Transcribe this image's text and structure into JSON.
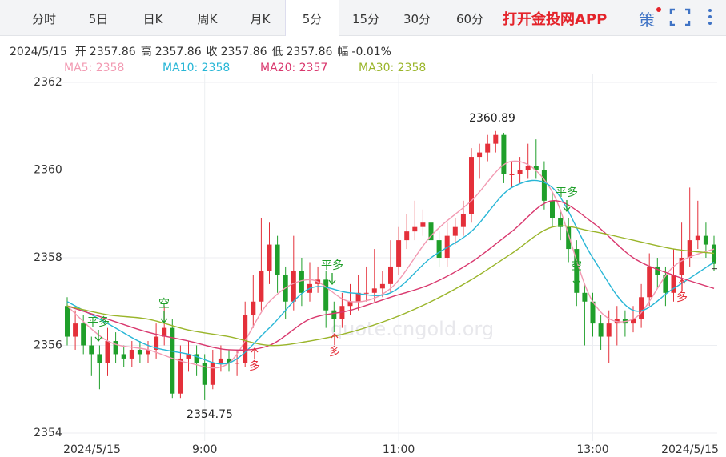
{
  "tabs": [
    "分时",
    "5日",
    "日K",
    "周K",
    "月K",
    "5分",
    "15分",
    "30分",
    "60分"
  ],
  "active_tab": 5,
  "app_link": "打开金投网APP",
  "icon_text": "策",
  "info": [
    {
      "label": "2024/5/15"
    },
    {
      "label": "开",
      "value": "2357.86"
    },
    {
      "label": "高",
      "value": "2357.86"
    },
    {
      "label": "收",
      "value": "2357.86"
    },
    {
      "label": "低",
      "value": "2357.86"
    },
    {
      "label": "幅",
      "value": "-0.01%"
    }
  ],
  "chart_data": {
    "type": "candlestick",
    "up_color": "#e4303a",
    "down_color": "#1f9f2a",
    "watermark": "quote.cngold.org",
    "categories": [
      null,
      null,
      null,
      "2024/5/15",
      null,
      null,
      null,
      null,
      null,
      null,
      null,
      null,
      null,
      null,
      null,
      null,
      null,
      "9:00",
      null,
      null,
      null,
      null,
      null,
      null,
      null,
      null,
      null,
      null,
      null,
      null,
      null,
      null,
      null,
      null,
      null,
      null,
      null,
      null,
      null,
      null,
      null,
      "11:00",
      null,
      null,
      null,
      null,
      null,
      null,
      null,
      null,
      null,
      null,
      null,
      null,
      null,
      null,
      null,
      null,
      null,
      null,
      null,
      null,
      null,
      null,
      null,
      "13:00",
      null,
      null,
      null,
      null,
      null,
      null,
      null,
      null,
      null,
      null,
      null,
      "2024/5/15",
      null,
      null,
      null
    ],
    "ohlc": [
      [
        2356.9,
        2357.1,
        2356.0,
        2356.2
      ],
      [
        2356.2,
        2356.8,
        2355.9,
        2356.5
      ],
      [
        2356.5,
        2356.7,
        2355.8,
        2356.0
      ],
      [
        2356.0,
        2356.2,
        2355.3,
        2355.8
      ],
      [
        2355.8,
        2356.0,
        2355.0,
        2355.6
      ],
      [
        2355.6,
        2356.4,
        2355.3,
        2356.1
      ],
      [
        2356.1,
        2356.3,
        2355.6,
        2355.8
      ],
      [
        2355.8,
        2356.0,
        2355.5,
        2355.7
      ],
      [
        2355.7,
        2356.1,
        2355.5,
        2355.9
      ],
      [
        2355.9,
        2356.1,
        2355.6,
        2355.8
      ],
      [
        2355.8,
        2356.1,
        2355.6,
        2355.9
      ],
      [
        2355.9,
        2356.5,
        2355.7,
        2356.2
      ],
      [
        2356.2,
        2356.9,
        2356.0,
        2356.4
      ],
      [
        2356.4,
        2356.6,
        2354.8,
        2354.9
      ],
      [
        2354.9,
        2356.0,
        2354.8,
        2355.7
      ],
      [
        2355.7,
        2356.1,
        2355.4,
        2355.8
      ],
      [
        2355.8,
        2356.0,
        2355.3,
        2355.6
      ],
      [
        2355.6,
        2355.8,
        2354.75,
        2355.1
      ],
      [
        2355.1,
        2355.9,
        2355.0,
        2355.6
      ],
      [
        2355.6,
        2356.0,
        2355.4,
        2355.7
      ],
      [
        2355.7,
        2355.9,
        2355.4,
        2355.6
      ],
      [
        2355.6,
        2355.9,
        2355.3,
        2355.6
      ],
      [
        2355.6,
        2357.0,
        2355.5,
        2356.7
      ],
      [
        2356.7,
        2357.6,
        2356.4,
        2357.0
      ],
      [
        2357.0,
        2358.9,
        2356.8,
        2357.7
      ],
      [
        2357.7,
        2358.8,
        2357.4,
        2358.3
      ],
      [
        2358.3,
        2358.5,
        2357.2,
        2357.6
      ],
      [
        2357.6,
        2357.8,
        2356.6,
        2357.0
      ],
      [
        2357.0,
        2358.5,
        2356.8,
        2357.7
      ],
      [
        2357.7,
        2358.0,
        2356.9,
        2357.2
      ],
      [
        2357.2,
        2357.9,
        2357.0,
        2357.4
      ],
      [
        2357.4,
        2357.8,
        2357.2,
        2357.5
      ],
      [
        2357.5,
        2357.7,
        2356.4,
        2356.8
      ],
      [
        2356.8,
        2357.0,
        2356.3,
        2356.6
      ],
      [
        2356.6,
        2357.2,
        2356.4,
        2356.9
      ],
      [
        2356.9,
        2357.4,
        2356.7,
        2357.0
      ],
      [
        2357.0,
        2357.6,
        2356.8,
        2357.2
      ],
      [
        2357.2,
        2357.8,
        2357.0,
        2357.2
      ],
      [
        2357.2,
        2358.2,
        2357.0,
        2357.3
      ],
      [
        2357.3,
        2357.7,
        2357.1,
        2357.4
      ],
      [
        2357.4,
        2358.4,
        2357.2,
        2357.8
      ],
      [
        2357.8,
        2358.7,
        2357.6,
        2358.4
      ],
      [
        2358.4,
        2359.0,
        2358.2,
        2358.6
      ],
      [
        2358.6,
        2359.3,
        2358.4,
        2358.7
      ],
      [
        2358.7,
        2359.1,
        2358.5,
        2358.8
      ],
      [
        2358.8,
        2359.0,
        2358.2,
        2358.4
      ],
      [
        2358.4,
        2358.6,
        2357.8,
        2358.0
      ],
      [
        2358.0,
        2358.8,
        2357.8,
        2358.5
      ],
      [
        2358.5,
        2358.9,
        2358.3,
        2358.7
      ],
      [
        2358.7,
        2359.3,
        2358.5,
        2359.0
      ],
      [
        2359.0,
        2360.5,
        2358.8,
        2360.3
      ],
      [
        2360.3,
        2360.6,
        2359.8,
        2360.4
      ],
      [
        2360.4,
        2360.8,
        2360.2,
        2360.6
      ],
      [
        2360.6,
        2360.89,
        2360.4,
        2360.8
      ],
      [
        2360.8,
        2360.85,
        2359.7,
        2359.9
      ],
      [
        2359.9,
        2360.2,
        2359.6,
        2359.9
      ],
      [
        2359.9,
        2360.3,
        2359.7,
        2360.0
      ],
      [
        2360.0,
        2360.6,
        2359.8,
        2360.1
      ],
      [
        2360.1,
        2360.7,
        2359.8,
        2360.0
      ],
      [
        2360.0,
        2360.2,
        2359.1,
        2359.3
      ],
      [
        2359.3,
        2359.5,
        2358.7,
        2358.9
      ],
      [
        2358.9,
        2359.1,
        2358.4,
        2358.7
      ],
      [
        2358.7,
        2358.9,
        2357.9,
        2358.2
      ],
      [
        2358.2,
        2358.4,
        2356.9,
        2357.2
      ],
      [
        2357.2,
        2357.4,
        2356.0,
        2357.0
      ],
      [
        2357.0,
        2357.2,
        2356.2,
        2356.5
      ],
      [
        2356.5,
        2356.7,
        2355.9,
        2356.2
      ],
      [
        2356.2,
        2356.8,
        2355.6,
        2356.5
      ],
      [
        2356.5,
        2356.9,
        2356.0,
        2356.6
      ],
      [
        2356.6,
        2356.8,
        2356.2,
        2356.5
      ],
      [
        2356.5,
        2356.9,
        2356.3,
        2356.6
      ],
      [
        2356.6,
        2357.4,
        2356.4,
        2357.1
      ],
      [
        2357.1,
        2358.1,
        2356.9,
        2357.8
      ],
      [
        2357.8,
        2358.0,
        2357.3,
        2357.6
      ],
      [
        2357.6,
        2357.8,
        2356.9,
        2357.2
      ],
      [
        2357.2,
        2358.2,
        2357.0,
        2357.6
      ],
      [
        2357.6,
        2358.8,
        2357.4,
        2358.0
      ],
      [
        2358.0,
        2359.6,
        2357.8,
        2358.4
      ],
      [
        2358.4,
        2359.3,
        2358.2,
        2358.5
      ],
      [
        2358.5,
        2358.8,
        2358.0,
        2358.3
      ],
      [
        2358.3,
        2358.5,
        2357.7,
        2357.86
      ]
    ],
    "series": [
      {
        "name": "MA5: 2358",
        "color": "#f29ab2",
        "x": [
          0,
          5,
          10,
          15,
          20,
          25,
          30,
          35,
          40,
          45,
          50,
          55,
          60,
          65,
          70,
          75,
          80
        ],
        "values": [
          2356.9,
          2356.1,
          2355.9,
          2355.6,
          2355.6,
          2357.0,
          2357.5,
          2357.0,
          2357.3,
          2358.5,
          2359.3,
          2360.2,
          2359.5,
          2357.0,
          2356.6,
          2357.8,
          2358.2
        ]
      },
      {
        "name": "MA10: 2358",
        "color": "#27b6d6",
        "x": [
          0,
          5,
          10,
          15,
          20,
          25,
          30,
          35,
          40,
          45,
          50,
          55,
          60,
          65,
          70,
          75,
          80
        ],
        "values": [
          2357.0,
          2356.5,
          2356.0,
          2355.8,
          2355.6,
          2356.4,
          2357.3,
          2357.2,
          2357.2,
          2358.0,
          2358.6,
          2359.6,
          2359.6,
          2358.0,
          2356.8,
          2357.3,
          2357.9
        ]
      },
      {
        "name": "MA20: 2357",
        "color": "#d9386e",
        "x": [
          0,
          5,
          10,
          15,
          20,
          25,
          30,
          35,
          40,
          45,
          50,
          55,
          60,
          65,
          70,
          75,
          80
        ],
        "values": [
          2356.9,
          2356.6,
          2356.3,
          2356.1,
          2355.9,
          2356.0,
          2356.6,
          2356.8,
          2357.1,
          2357.4,
          2357.9,
          2358.6,
          2359.3,
          2358.8,
          2358.0,
          2357.6,
          2357.3
        ]
      },
      {
        "name": "MA30: 2358",
        "color": "#9ab52a",
        "x": [
          0,
          5,
          10,
          15,
          20,
          25,
          30,
          35,
          40,
          45,
          50,
          55,
          60,
          65,
          70,
          75,
          80
        ],
        "values": [
          2356.9,
          2356.7,
          2356.6,
          2356.35,
          2356.2,
          2356.0,
          2356.1,
          2356.3,
          2356.6,
          2357.0,
          2357.5,
          2358.1,
          2358.7,
          2358.6,
          2358.4,
          2358.2,
          2358.1
        ]
      }
    ],
    "ylim": [
      2354,
      2362
    ],
    "yticks": [
      2354,
      2356,
      2358,
      2360,
      2362
    ],
    "grid": true,
    "annotations": [
      {
        "text": "2360.89",
        "color": "#222"
      },
      {
        "text": "2354.75",
        "color": "#222"
      },
      {
        "text": "平多",
        "color": "#1f9f2a"
      },
      {
        "text": "空",
        "color": "#1f9f2a"
      },
      {
        "text": "多",
        "color": "#e4303a"
      },
      {
        "text": "平多",
        "color": "#1f9f2a"
      },
      {
        "text": "多",
        "color": "#e4303a"
      },
      {
        "text": "平多",
        "color": "#1f9f2a"
      },
      {
        "text": "空",
        "color": "#1f9f2a"
      },
      {
        "text": "多",
        "color": "#e4303a"
      }
    ]
  }
}
